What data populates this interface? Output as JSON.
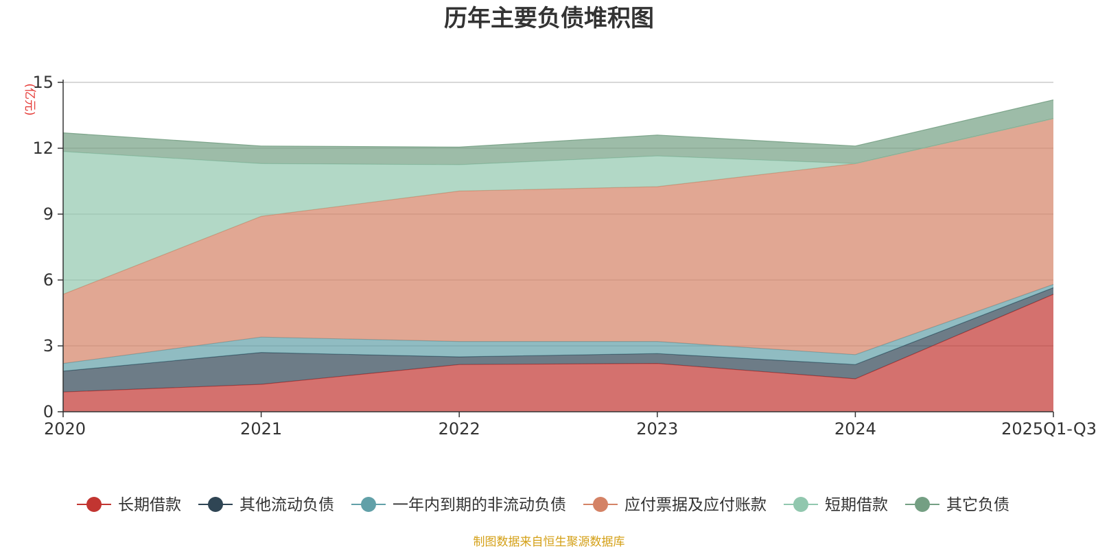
{
  "chart_data": {
    "type": "area",
    "stacked": true,
    "title": "历年主要负债堆积图",
    "unit_label": "(亿元)",
    "categories": [
      "2020",
      "2021",
      "2022",
      "2023",
      "2024",
      "2025Q1-Q3"
    ],
    "y_ticks": [
      "0",
      "3",
      "6",
      "9",
      "12",
      "15"
    ],
    "ylim": [
      0,
      15
    ],
    "grid": true,
    "legend_position": "bottom",
    "series": [
      {
        "name": "长期借款",
        "color": "#c23531",
        "values": [
          0.9,
          1.25,
          2.15,
          2.2,
          1.5,
          5.35
        ]
      },
      {
        "name": "其他流动负债",
        "color": "#2f4554",
        "values": [
          0.95,
          1.45,
          0.35,
          0.45,
          0.65,
          0.3
        ]
      },
      {
        "name": "一年内到期的非流动负债",
        "color": "#61a0a8",
        "values": [
          0.35,
          0.7,
          0.7,
          0.55,
          0.45,
          0.15
        ]
      },
      {
        "name": "应付票据及应付账款",
        "color": "#d48265",
        "values": [
          3.15,
          5.5,
          6.85,
          7.05,
          8.7,
          7.55
        ]
      },
      {
        "name": "短期借款",
        "color": "#91c7ae",
        "values": [
          6.5,
          2.4,
          1.2,
          1.4,
          0.0,
          0.0
        ]
      },
      {
        "name": "其它负债",
        "color": "#749f83",
        "values": [
          0.85,
          0.8,
          0.8,
          0.95,
          0.8,
          0.85
        ]
      }
    ],
    "source": "制图数据来自恒生聚源数据库"
  }
}
